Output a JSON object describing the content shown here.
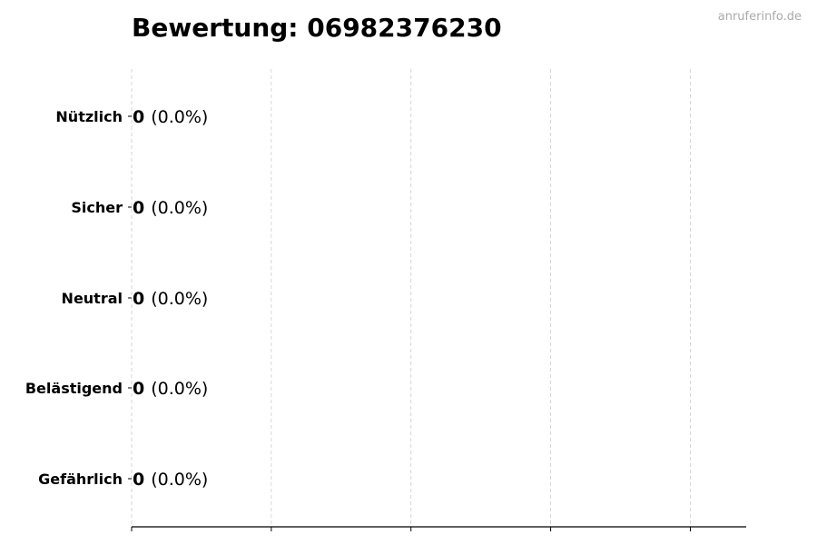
{
  "watermark": "anruferinfo.de",
  "chart_data": {
    "type": "bar",
    "orientation": "horizontal",
    "title": "Bewertung: 06982376230",
    "categories": [
      "Nützlich",
      "Sicher",
      "Neutral",
      "Belästigend",
      "Gefährlich"
    ],
    "values": [
      0,
      0,
      0,
      0,
      0
    ],
    "labels": [
      {
        "count": "0",
        "percent": "(0.0%)"
      },
      {
        "count": "0",
        "percent": "(0.0%)"
      },
      {
        "count": "0",
        "percent": "(0.0%)"
      },
      {
        "count": "0",
        "percent": "(0.0%)"
      },
      {
        "count": "0",
        "percent": "(0.0%)"
      }
    ],
    "xlim": [
      0,
      4.4
    ],
    "xticks": [
      0,
      1,
      2,
      3,
      4
    ],
    "xtick_labels_visible": false,
    "grid": "x, dashed",
    "xlabel": "",
    "ylabel": "",
    "bar_edge_color": "#333333",
    "grid_color": "#cccccc",
    "watermark_color": "#aaaaaa"
  }
}
